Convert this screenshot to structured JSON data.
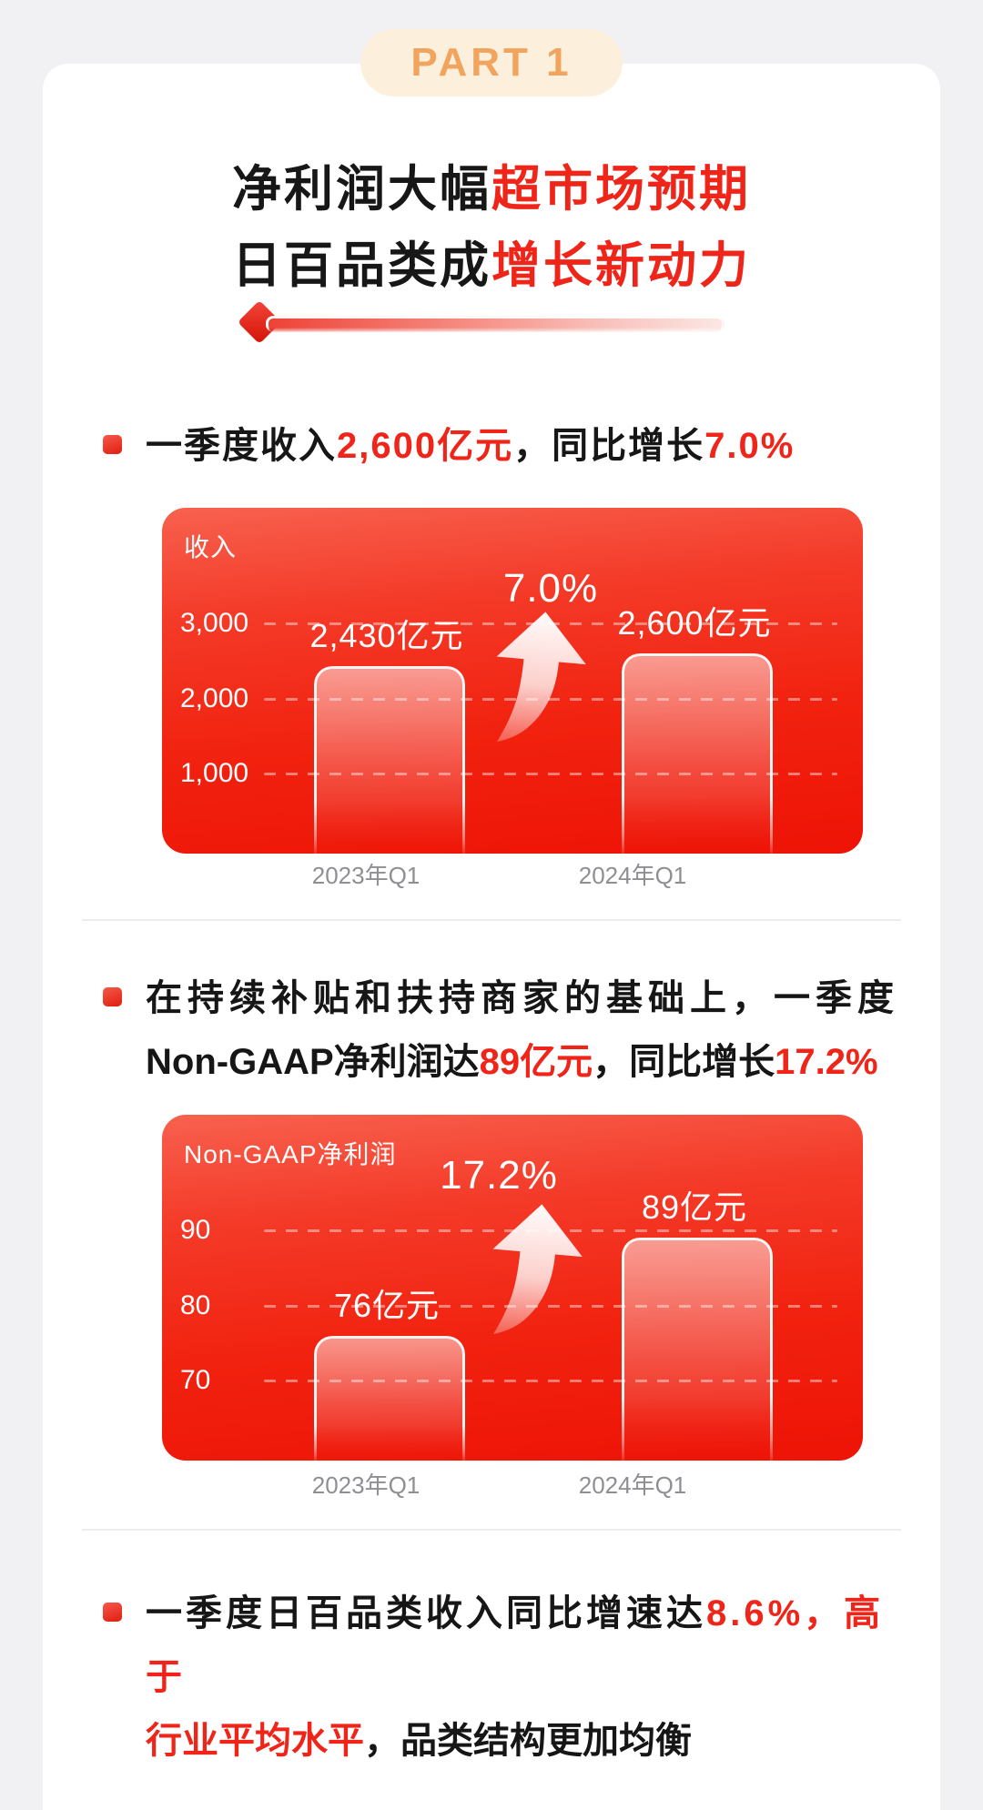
{
  "badge": {
    "label": "PART 1"
  },
  "title": {
    "line1_dark": "净利润大幅",
    "line1_red": "超市场预期",
    "line2_dark": "日百品类成",
    "line2_red": "增长新动力"
  },
  "bullets": {
    "b1": {
      "p1": "一季度收入",
      "p2": "2,600亿元",
      "p3": "，同比增长",
      "p4": "7.0%"
    },
    "b2": {
      "line1": "在持续补贴和扶持商家的基础上，一季度",
      "p1": "Non-GAAP净利润达",
      "p2": "89亿元",
      "p3": "，同比增长",
      "p4": "17.2%"
    },
    "b3": {
      "p1": "一季度日百品类收入同比增速达",
      "p2": "8.6%，高于",
      "line2_red": "行业平均水平",
      "line2_dark": "，品类结构更加均衡"
    }
  },
  "chart_data": [
    {
      "type": "bar",
      "title": "收入",
      "unit": "亿元",
      "categories": [
        "2023年Q1",
        "2024年Q1"
      ],
      "values": [
        2430,
        2600
      ],
      "value_labels": [
        "2,430亿元",
        "2,600亿元"
      ],
      "growth_label": "7.0%",
      "yticks": [
        3000,
        2000,
        1000
      ],
      "ytick_labels": [
        "3,000",
        "2,000",
        "1,000"
      ],
      "grid": "horizontal-dashed",
      "legend": "none",
      "annotation": "white up arrow between bars with growth percent"
    },
    {
      "type": "bar",
      "title": "Non-GAAP净利润",
      "unit": "亿元",
      "categories": [
        "2023年Q1",
        "2024年Q1"
      ],
      "values": [
        76,
        89
      ],
      "value_labels": [
        "76亿元",
        "89亿元"
      ],
      "growth_label": "17.2%",
      "yticks": [
        90,
        80,
        70
      ],
      "ytick_labels": [
        "90",
        "80",
        "70"
      ],
      "grid": "horizontal-dashed",
      "legend": "none",
      "annotation": "white up arrow between bars with growth percent"
    }
  ],
  "colors": {
    "accent_red": "#f0251a",
    "title_dark": "#171717",
    "badge_bg": "#fcf0dc",
    "badge_text": "#f0a45e",
    "chart_bg_top": "#f8614f",
    "chart_bg_bottom": "#ee1306",
    "xlabel_gray": "#8f8f93",
    "page_bg": "#f1f1f3",
    "card_bg": "#ffffff"
  }
}
